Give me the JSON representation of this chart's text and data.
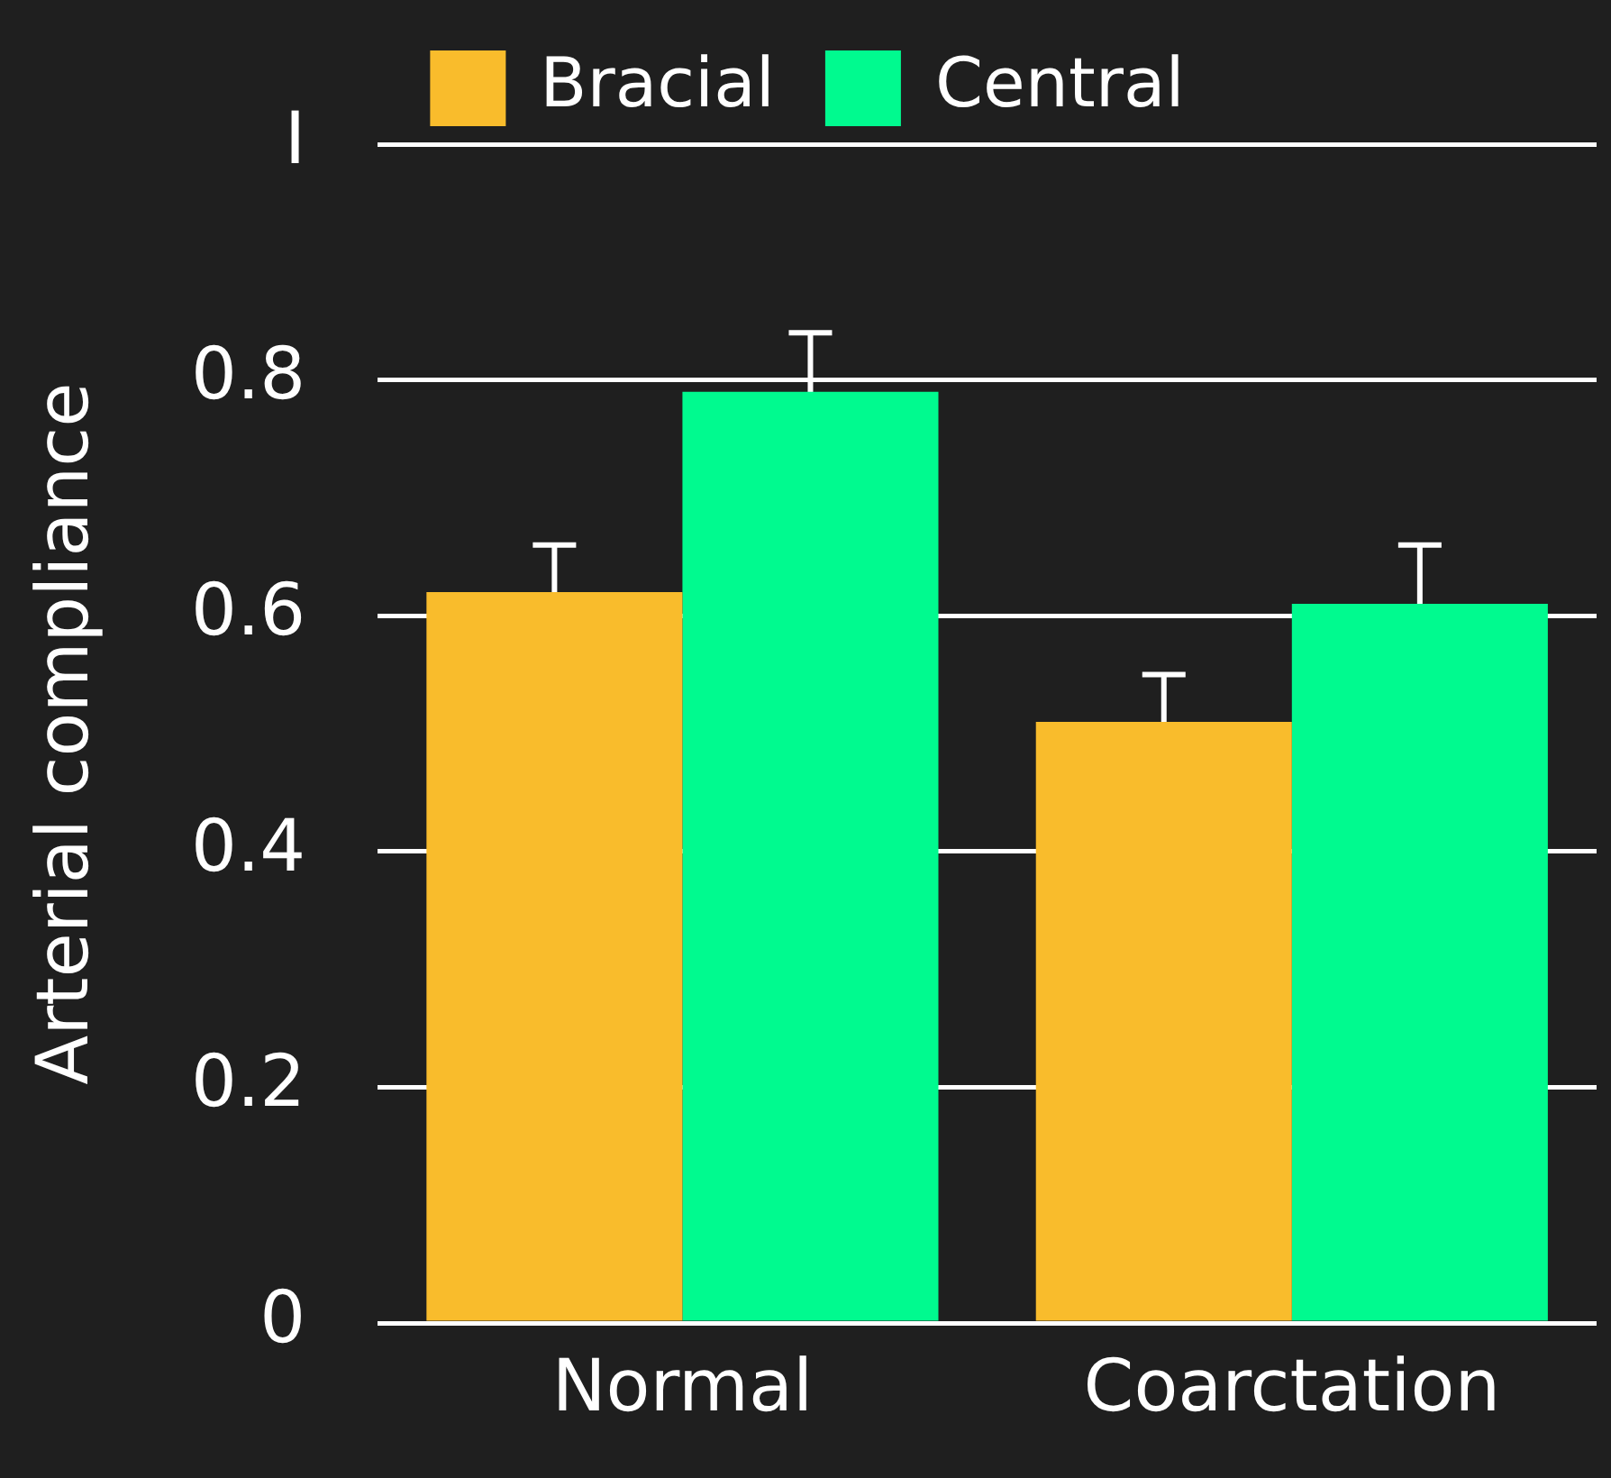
{
  "chart_data": {
    "type": "bar",
    "ylabel": "Arterial compliance",
    "categories": [
      "Normal",
      "Coarctation"
    ],
    "series": [
      {
        "name": "Bracial",
        "color": "#f9bc2c",
        "values": [
          0.62,
          0.51
        ],
        "errors": [
          0.04,
          0.04
        ]
      },
      {
        "name": "Central",
        "color": "#00fa8f",
        "values": [
          0.79,
          0.61
        ],
        "errors": [
          0.05,
          0.05
        ]
      }
    ],
    "ylim": [
      0,
      1
    ],
    "yticks": [
      0,
      0.2,
      0.4,
      0.6,
      0.8,
      {
        "value": 1,
        "label": "I"
      }
    ],
    "grid": "y",
    "legend": "top"
  }
}
